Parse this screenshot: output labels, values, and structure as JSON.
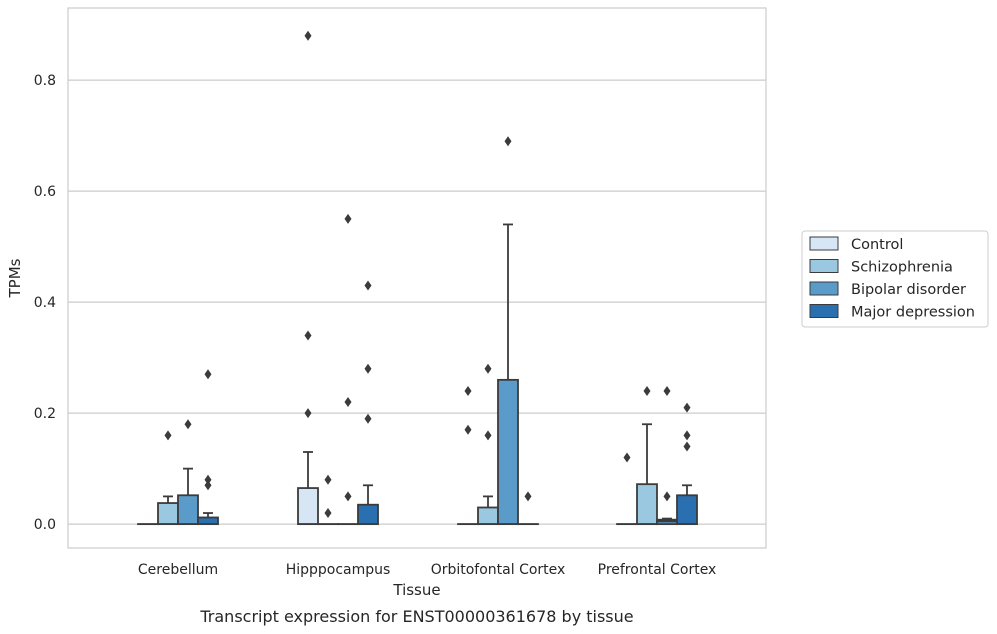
{
  "chart_data": {
    "type": "box",
    "title": "",
    "caption": "Transcript expression for ENST00000361678 by tissue",
    "xlabel": "Tissue",
    "ylabel": "TPMs",
    "ylim": [
      -0.043,
      0.93
    ],
    "yticks": [
      "0.0",
      "0.2",
      "0.4",
      "0.6",
      "0.8"
    ],
    "ytick_values": [
      0.0,
      0.2,
      0.4,
      0.6,
      0.8
    ],
    "grid": "horizontal",
    "legend_position": "right",
    "categories": [
      "Cerebellum",
      "Hipppocampus",
      "Orbitofontal Cortex",
      "Prefrontal Cortex"
    ],
    "series": [
      {
        "name": "Control",
        "color": "#d6e6f4",
        "boxes": [
          {
            "q1": 0,
            "median": 0,
            "q3": 0,
            "whisker_low": 0,
            "whisker_high": 0,
            "outliers": []
          },
          {
            "q1": 0,
            "median": 0,
            "q3": 0.065,
            "whisker_low": 0,
            "whisker_high": 0.13,
            "outliers": [
              0.2,
              0.34,
              0.88
            ]
          },
          {
            "q1": 0,
            "median": 0,
            "q3": 0,
            "whisker_low": 0,
            "whisker_high": 0,
            "outliers": [
              0.17,
              0.24
            ]
          },
          {
            "q1": 0,
            "median": 0,
            "q3": 0,
            "whisker_low": 0,
            "whisker_high": 0,
            "outliers": [
              0.12
            ]
          }
        ]
      },
      {
        "name": "Schizophrenia",
        "color": "#9ac8e0",
        "boxes": [
          {
            "q1": 0,
            "median": 0,
            "q3": 0.038,
            "whisker_low": 0,
            "whisker_high": 0.05,
            "outliers": [
              0.16
            ]
          },
          {
            "q1": 0,
            "median": 0,
            "q3": 0,
            "whisker_low": 0,
            "whisker_high": 0,
            "outliers": [
              0.02,
              0.08
            ]
          },
          {
            "q1": 0,
            "median": 0,
            "q3": 0.03,
            "whisker_low": 0,
            "whisker_high": 0.05,
            "outliers": [
              0.16,
              0.28
            ]
          },
          {
            "q1": 0,
            "median": 0,
            "q3": 0.072,
            "whisker_low": 0,
            "whisker_high": 0.18,
            "outliers": [
              0.24
            ]
          }
        ]
      },
      {
        "name": "Bipolar disorder",
        "color": "#5a9bc9",
        "boxes": [
          {
            "q1": 0,
            "median": 0,
            "q3": 0.052,
            "whisker_low": 0,
            "whisker_high": 0.1,
            "outliers": [
              0.18
            ]
          },
          {
            "q1": 0,
            "median": 0,
            "q3": 0,
            "whisker_low": 0,
            "whisker_high": 0,
            "outliers": [
              0.05,
              0.22,
              0.55
            ]
          },
          {
            "q1": 0,
            "median": 0,
            "q3": 0.26,
            "whisker_low": 0,
            "whisker_high": 0.54,
            "outliers": [
              0.69
            ]
          },
          {
            "q1": 0,
            "median": 0.005,
            "q3": 0.008,
            "whisker_low": 0,
            "whisker_high": 0.01,
            "outliers": [
              0.05,
              0.24
            ]
          }
        ]
      },
      {
        "name": "Major depression",
        "color": "#2a6fb0",
        "boxes": [
          {
            "q1": 0,
            "median": 0,
            "q3": 0.012,
            "whisker_low": 0,
            "whisker_high": 0.02,
            "outliers": [
              0.07,
              0.08,
              0.27
            ]
          },
          {
            "q1": 0,
            "median": 0,
            "q3": 0.035,
            "whisker_low": 0,
            "whisker_high": 0.07,
            "outliers": [
              0.19,
              0.28,
              0.43
            ]
          },
          {
            "q1": 0,
            "median": 0,
            "q3": 0,
            "whisker_low": 0,
            "whisker_high": 0,
            "outliers": [
              0.05
            ]
          },
          {
            "q1": 0,
            "median": 0,
            "q3": 0.052,
            "whisker_low": 0,
            "whisker_high": 0.07,
            "outliers": [
              0.14,
              0.16,
              0.21
            ]
          }
        ]
      }
    ]
  }
}
